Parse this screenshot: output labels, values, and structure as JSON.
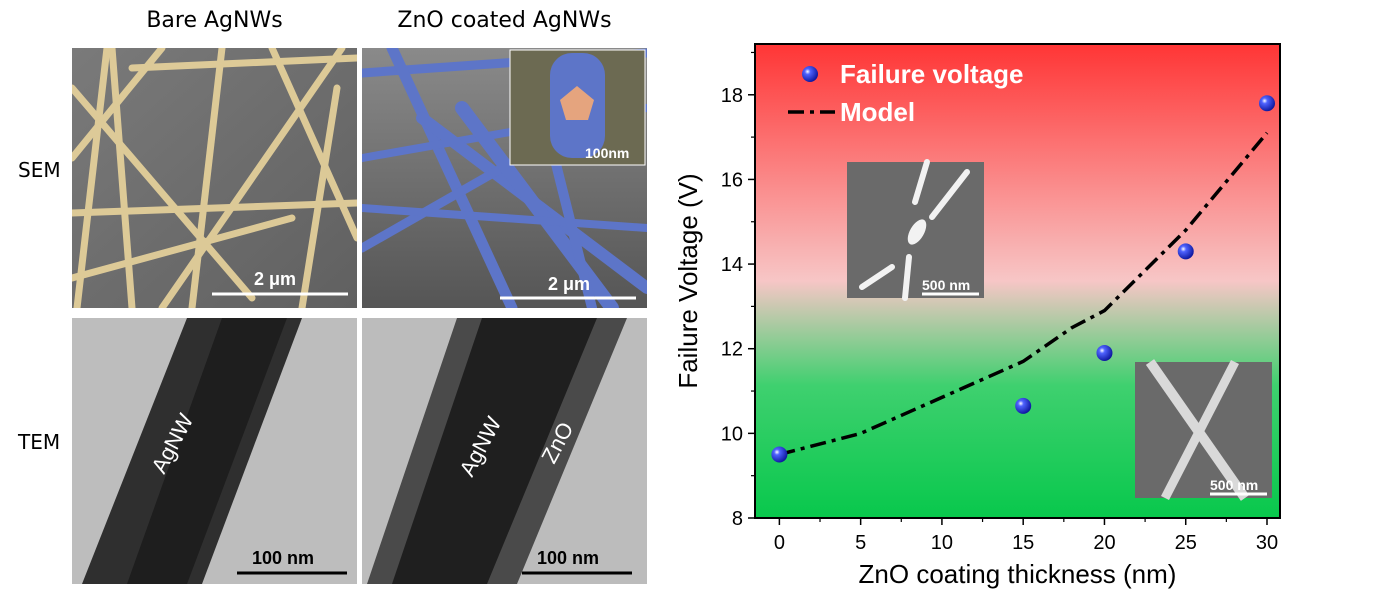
{
  "figure": {
    "columns": [
      "Bare AgNWs",
      "ZnO coated AgNWs"
    ],
    "rows": [
      "SEM",
      "TEM"
    ],
    "panels": {
      "sem_bare": {
        "scale": "2 μm"
      },
      "sem_zno": {
        "scale": "2 μm",
        "inset_scale": "100nm"
      },
      "tem_bare": {
        "labels": [
          "AgNW"
        ],
        "scale": "100 nm"
      },
      "tem_zno": {
        "labels": [
          "AgNW",
          "ZnO"
        ],
        "scale": "100 nm"
      }
    },
    "chart_insets": [
      "500 nm",
      "500 nm"
    ],
    "colors": {
      "sem_wire": "#e3cf9a",
      "zno_wire": "#5d75c8",
      "sem_bg": "#6f6f6f",
      "tem_bg": "#b9b9b9",
      "chart_top": "#ff3b3b",
      "chart_bottom": "#11cc55",
      "marker": "#1f2ed0"
    }
  },
  "chart_data": {
    "type": "scatter",
    "title": "",
    "xlabel": "ZnO coating thickness (nm)",
    "ylabel": "Failure Voltage (V)",
    "xlim": [
      -1.5,
      30.8
    ],
    "ylim": [
      8,
      19.2
    ],
    "xticks": [
      0,
      5,
      10,
      15,
      20,
      25,
      30
    ],
    "yticks": [
      8,
      10,
      12,
      14,
      16,
      18
    ],
    "grid": false,
    "legend_position": "top-left",
    "series": [
      {
        "name": "Failure voltage",
        "kind": "points",
        "points": [
          {
            "x": 0,
            "y": 9.5
          },
          {
            "x": 15,
            "y": 10.65
          },
          {
            "x": 20,
            "y": 11.9
          },
          {
            "x": 25,
            "y": 14.3
          },
          {
            "x": 30,
            "y": 17.8
          }
        ]
      },
      {
        "name": "Model",
        "kind": "dash-dot line",
        "points": [
          {
            "x": 0,
            "y": 9.5
          },
          {
            "x": 5,
            "y": 10.0
          },
          {
            "x": 10,
            "y": 10.85
          },
          {
            "x": 15,
            "y": 11.7
          },
          {
            "x": 18,
            "y": 12.5
          },
          {
            "x": 20,
            "y": 12.9
          },
          {
            "x": 25,
            "y": 14.8
          },
          {
            "x": 30,
            "y": 17.1
          }
        ]
      }
    ]
  }
}
